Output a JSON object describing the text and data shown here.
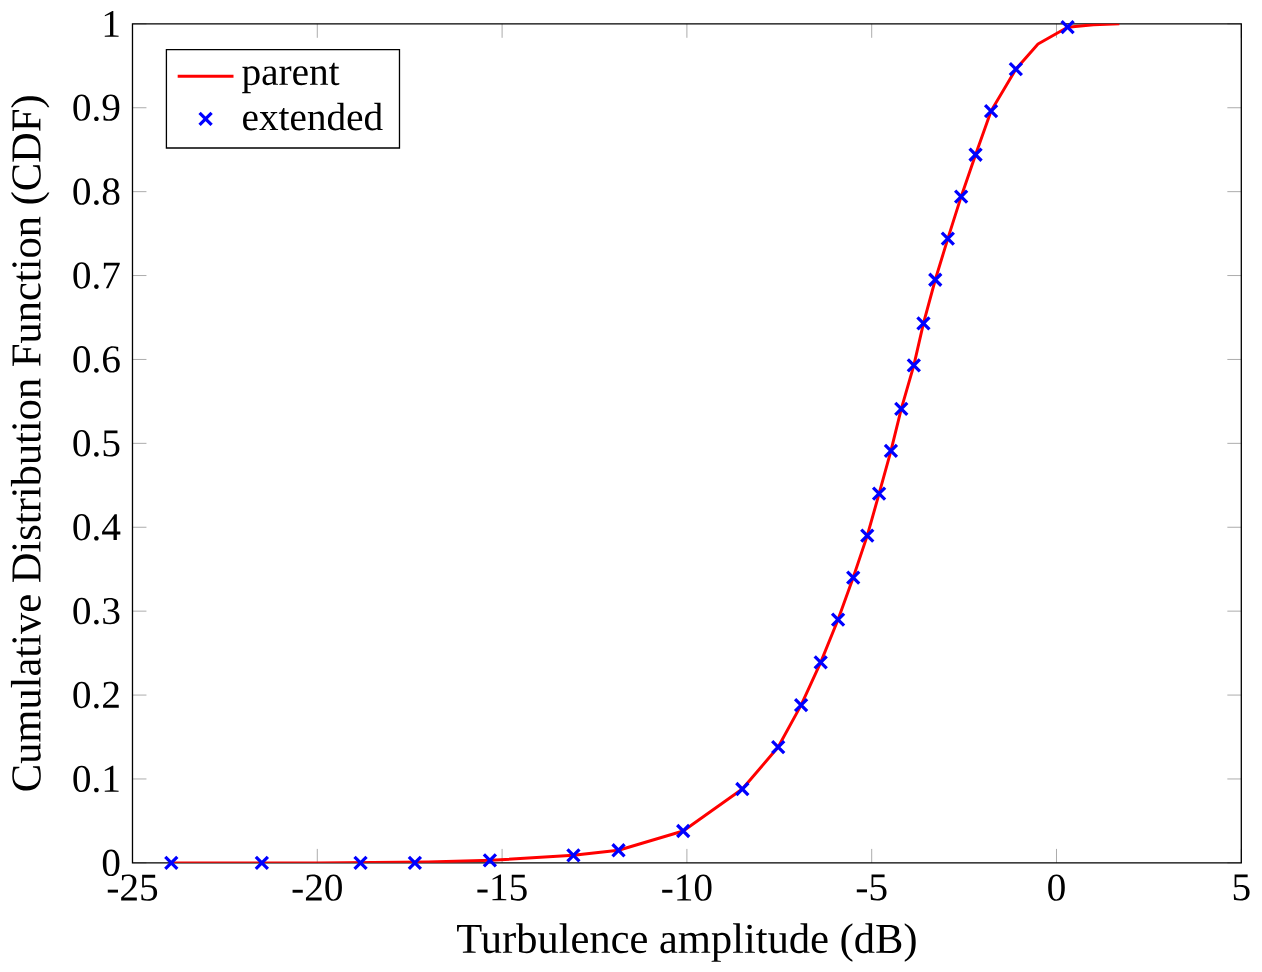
{
  "chart_data": {
    "type": "line",
    "xlabel": "Turbulence amplitude (dB)",
    "ylabel": "Cumulative Distribution Function (CDF)",
    "xlim": [
      -25,
      5
    ],
    "ylim": [
      0,
      1
    ],
    "xticks": [
      -25,
      -20,
      -15,
      -10,
      -5,
      0,
      5
    ],
    "yticks": [
      0,
      0.1,
      0.2,
      0.3,
      0.4,
      0.5,
      0.6,
      0.7,
      0.8,
      0.9,
      1
    ],
    "legend": "top left",
    "grid": false,
    "series": [
      {
        "name": "parent",
        "color": "#ff0000",
        "line_style": "solid",
        "marker": "none",
        "x": [
          -24,
          -20,
          -17,
          -15.3,
          -13.07,
          -11.85,
          -10.1,
          -8.5,
          -7.53,
          -6.91,
          -6.38,
          -5.91,
          -5.5,
          -5.12,
          -4.8,
          -4.48,
          -4.2,
          -3.86,
          -3.6,
          -3.28,
          -2.94,
          -2.58,
          -2.19,
          -1.77,
          -1.1,
          -0.5,
          0.3,
          1,
          1.7
        ],
        "values": [
          0,
          0,
          0.001,
          0.003,
          0.009,
          0.015,
          0.038,
          0.088,
          0.138,
          0.188,
          0.239,
          0.29,
          0.34,
          0.39,
          0.44,
          0.491,
          0.541,
          0.593,
          0.643,
          0.695,
          0.744,
          0.794,
          0.844,
          0.896,
          0.946,
          0.976,
          0.996,
          0.999,
          1
        ]
      },
      {
        "name": "extended",
        "type": "scatter",
        "color": "#0000ff",
        "marker": "cross",
        "x": [
          -23.95,
          -21.5,
          -18.83,
          -17.36,
          -15.33,
          -13.07,
          -11.85,
          -10.1,
          -8.5,
          -7.53,
          -6.91,
          -6.38,
          -5.91,
          -5.5,
          -5.12,
          -4.8,
          -4.48,
          -4.2,
          -3.86,
          -3.6,
          -3.28,
          -2.94,
          -2.58,
          -2.19,
          -1.77,
          -1.1,
          0.3
        ],
        "values": [
          0,
          0,
          0,
          0,
          0.003,
          0.009,
          0.015,
          0.038,
          0.088,
          0.138,
          0.188,
          0.239,
          0.29,
          0.34,
          0.39,
          0.44,
          0.491,
          0.541,
          0.593,
          0.643,
          0.695,
          0.744,
          0.794,
          0.844,
          0.896,
          0.946,
          0.996
        ]
      }
    ]
  }
}
